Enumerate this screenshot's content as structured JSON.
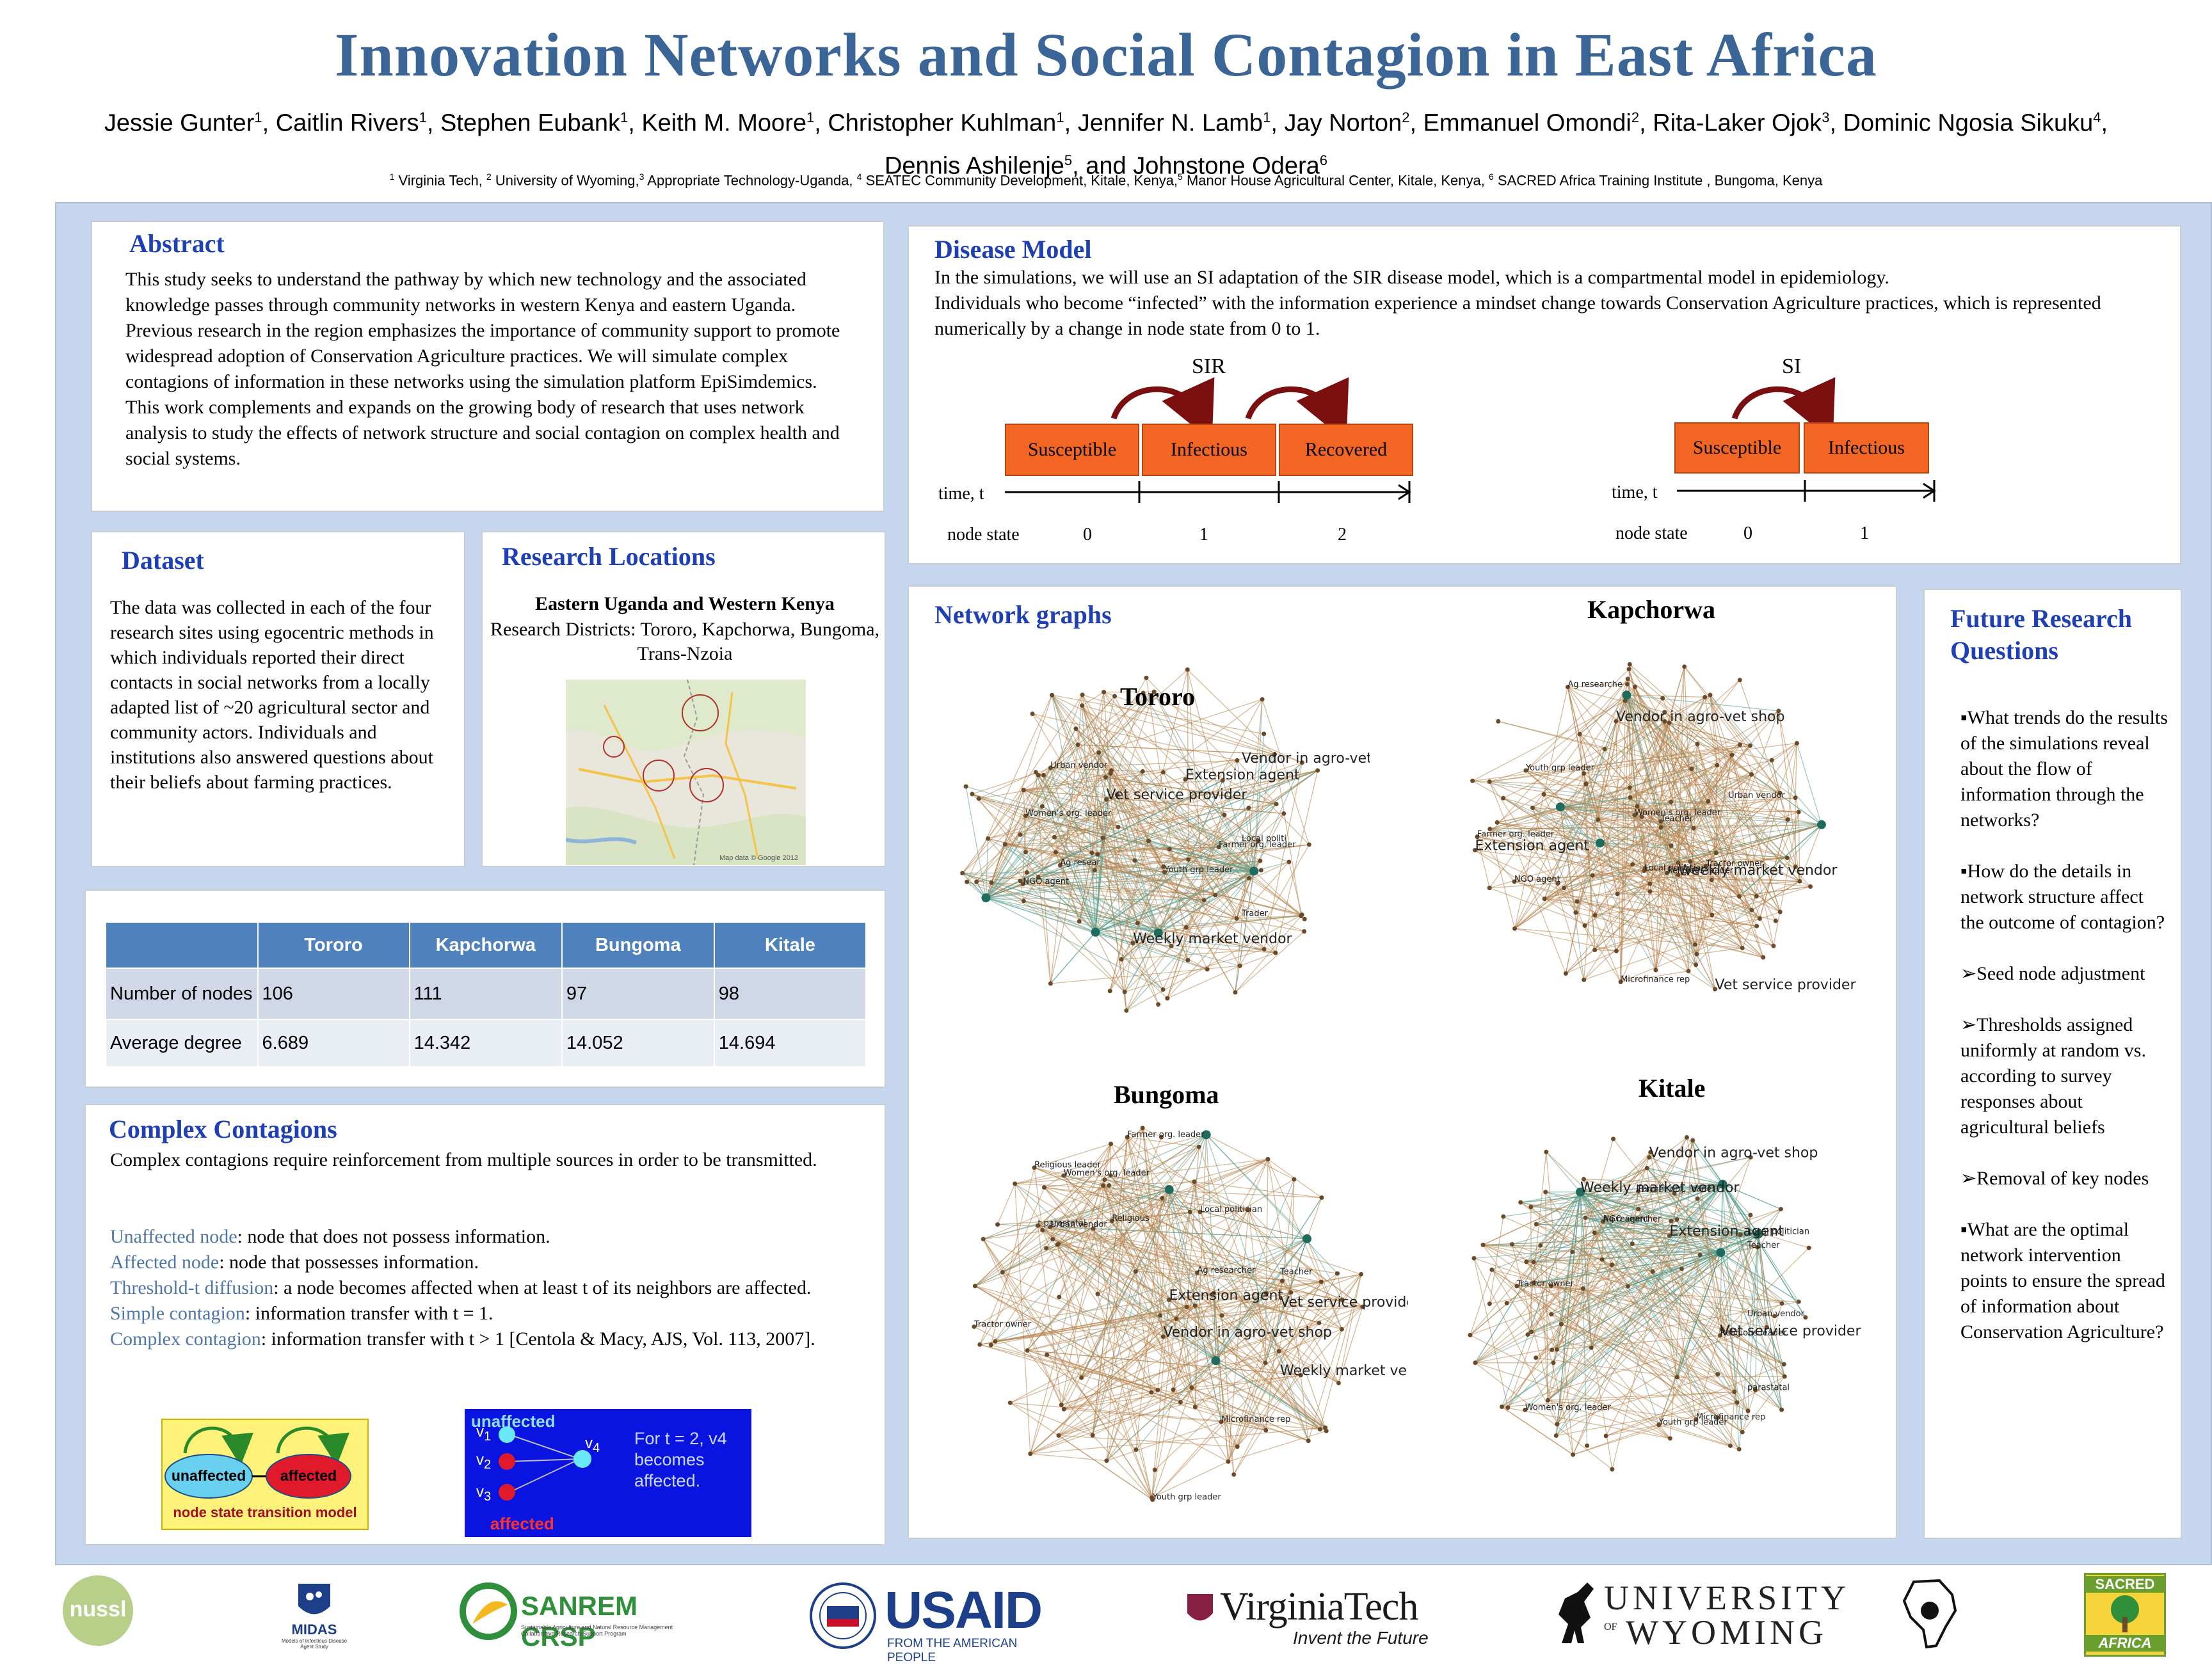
{
  "title": "Innovation Networks and Social Contagion in East Africa",
  "authors_line1": [
    {
      "name": "Jessie Gunter",
      "sup": "1"
    },
    {
      "name": "Caitlin Rivers",
      "sup": "1"
    },
    {
      "name": "Stephen Eubank",
      "sup": "1"
    },
    {
      "name": "Keith M. Moore",
      "sup": "1"
    },
    {
      "name": "Christopher Kuhlman",
      "sup": "1"
    },
    {
      "name": "Jennifer N. Lamb",
      "sup": "1"
    },
    {
      "name": "Jay Norton",
      "sup": "2"
    },
    {
      "name": "Emmanuel Omondi",
      "sup": "2"
    },
    {
      "name": "Rita-Laker Ojok",
      "sup": "3"
    },
    {
      "name": "Dominic Ngosia Sikuku",
      "sup": "4"
    }
  ],
  "authors_line2": {
    "a": "Dennis Ashilenje",
    "a_sup": "5",
    "joiner": ", and ",
    "b": "Johnstone Odera",
    "b_sup": "6"
  },
  "affiliations": [
    {
      "sup": "1",
      "text": "Virginia Tech, "
    },
    {
      "sup": "2",
      "text": "University of Wyoming,"
    },
    {
      "sup": "3",
      "text": "Appropriate Technology-Uganda, "
    },
    {
      "sup": "4",
      "text": "SEATEC Community Development, Kitale, Kenya,"
    },
    {
      "sup": "5",
      "text": "Manor House Agricultural Center, Kitale, Kenya, "
    },
    {
      "sup": "6",
      "text": "SACRED Africa Training Institute , Bungoma, Kenya"
    }
  ],
  "abstract": {
    "heading": "Abstract",
    "text": "This study seeks to understand the pathway by which new technology and the associated knowledge passes through community networks in western Kenya and eastern Uganda. Previous research in the region emphasizes the importance of community support to promote widespread adoption of Conservation Agriculture practices. We will simulate complex contagions of information in these networks using  the simulation platform EpiSimdemics. This work complements and expands on the growing body of research that uses network analysis to study the effects of network structure and social contagion on complex health and social systems."
  },
  "dataset": {
    "heading": "Dataset",
    "text": "The data was collected  in each of the four research sites using egocentric methods  in which individuals reported their direct contacts in social networks from a locally  adapted list of ~20 agricultural sector and community actors.   Individuals and institutions also answered questions about their beliefs about farming practices."
  },
  "locations": {
    "heading": "Research Locations",
    "subtitle": "Eastern Uganda and Western Kenya",
    "districts": "Research Districts: Tororo, Kapchorwa, Bungoma, Trans-Nzoia",
    "map_credit": "Map data © Google 2012"
  },
  "table": {
    "headers": [
      "",
      "Tororo",
      "Kapchorwa",
      "Bungoma",
      "Kitale"
    ],
    "rows": [
      {
        "label": "Number of nodes",
        "values": [
          "106",
          "111",
          "97",
          "98"
        ]
      },
      {
        "label": "Average degree",
        "values": [
          "6.689",
          "14.342",
          "14.052",
          "14.694"
        ]
      }
    ]
  },
  "complex": {
    "heading": "Complex Contagions",
    "intro": "Complex contagions require reinforcement from multiple sources in order to be transmitted.",
    "defs": [
      {
        "term": "Unaffected node",
        "text": ": node that does not possess information."
      },
      {
        "term": "Affected node",
        "text": ":  node that possesses information."
      },
      {
        "term": "Threshold-t diffusion",
        "text": ":  a node becomes affected when at least t of its neighbors are affected."
      },
      {
        "term": "Simple contagion",
        "text": ":  information transfer with t = 1."
      },
      {
        "term": "Complex contagion",
        "text": ":  information transfer with t > 1 [Centola & Macy, AJS, Vol. 113, 2007]."
      }
    ],
    "diagram1": {
      "unaffected": "unaffected",
      "affected": "affected",
      "caption": "node state transition model"
    },
    "diagram2": {
      "top": "unaffected",
      "bottom": "affected",
      "v1": "v",
      "v2": "v",
      "v3": "v",
      "v4": "v",
      "s1": "1",
      "s2": "2",
      "s3": "3",
      "s4": "4",
      "note": "For t = 2, v4 becomes affected."
    }
  },
  "disease": {
    "heading": "Disease Model",
    "text1": "In the simulations, we will use an SI adaptation of the SIR disease model, which is a compartmental model in epidemiology.",
    "text2": "  Individuals who become “infected” with the information experience a mindset change towards Conservation Agriculture practices, which is represented numerically by a change in node state from 0 to 1.",
    "sir": {
      "label": "SIR",
      "boxes": [
        "Susceptible",
        "Infectious",
        "Recovered"
      ],
      "time": "time, t",
      "state_label": "node  state",
      "states": [
        "0",
        "1",
        "2"
      ]
    },
    "si": {
      "label": "SI",
      "boxes": [
        "Susceptible",
        "Infectious"
      ],
      "time": "time, t",
      "state_label": "node state",
      "states": [
        "0",
        "1"
      ]
    },
    "colors": {
      "box": "#f26522",
      "arrow": "#7b0f0f"
    }
  },
  "network": {
    "heading": "Network graphs",
    "graphs": [
      {
        "name": "Tororo",
        "labels": [
          "Trader",
          "Youth grp leader",
          "Ag resear",
          "Urban vendor",
          "NGO agent",
          "Vendor in agro-vet shop",
          "Local politi",
          "Farmer org. leader",
          "Extension agent",
          "Vet service provider",
          "Weekly market vendor",
          "Women's org. leader"
        ]
      },
      {
        "name": "Kapchorwa",
        "labels": [
          "Local politician",
          "Tractor owner",
          "Youth grp leader",
          "Women's org. leader",
          "Ag researche",
          "Farmer org. leader",
          "Microfinance rep",
          "Teacher",
          "Religious leader",
          "NGO agent",
          "Weekly market vendor",
          "Urban vendor",
          "Extension agent",
          "Vendor in agro-vet shop",
          "Vet service provider"
        ]
      },
      {
        "name": "Bungoma",
        "labels": [
          "Farmer org. leader",
          "Ag researcher",
          "Youth grp leader",
          "Local politician",
          "Religious leader",
          "Religious",
          "Women's org. leader",
          "Teacher",
          "Weekly market vendor",
          "Urban vendor",
          "Microfinance rep",
          "Extension agent",
          "Vet service provider",
          "t parastatal",
          "Vendor in agro-vet shop",
          "Tractor owner"
        ]
      },
      {
        "name": "Kitale",
        "labels": [
          "Vet service provider",
          "Ag researcher",
          "Tractor owner",
          "Local politician",
          "parastatal",
          "Extension agent",
          "Microfinance rep",
          "Vendor in agro-vet shop",
          "Farmer org. leader",
          "Youth grp leader",
          "Teacher",
          "Weekly market vendor",
          "Women's org. leader",
          "Urban vendor",
          "Religious leader",
          "NGO agent"
        ]
      }
    ],
    "colors": {
      "brown": "#b5824a",
      "green": "#5a9e8e",
      "node": "#6b4a2a",
      "hub": "#1f6b5e"
    }
  },
  "future": {
    "heading": "Future Research Questions",
    "items": [
      {
        "bullet": "▪",
        "text": "What trends do the results of the simulations reveal about the flow of information through the networks?"
      },
      {
        "bullet": "▪",
        "text": "How do the details in network structure affect the outcome of contagion?"
      },
      {
        "bullet": "➢",
        "text": "Seed node adjustment"
      },
      {
        "bullet": "➢",
        "text": "Thresholds assigned uniformly at random vs. according to survey responses about agricultural beliefs"
      },
      {
        "bullet": "➢",
        "text": "Removal of key nodes"
      },
      {
        "bullet": "▪",
        "text": "What are the optimal network intervention points to ensure the spread of information about Conservation Agriculture?"
      }
    ]
  },
  "logos": {
    "nussl": "nussl",
    "midas": "MIDAS",
    "midas_sub": "Models of Infectious Disease Agent Study",
    "sanrem": "SANREM CRSP",
    "sanrem_sub": "Sustainable Agriculture and Natural Resource Management Collaborative Research Support Program",
    "usaid": "USAID",
    "usaid_sub": "FROM THE AMERICAN PEOPLE",
    "vt": "VirginiaTech",
    "vt_sub": "Invent the Future",
    "uw1": "UNIVERSITY",
    "uw_of": "OF",
    "uw2": "WYOMING",
    "sacred1": "SACRED",
    "sacred2": "AFRICA"
  }
}
